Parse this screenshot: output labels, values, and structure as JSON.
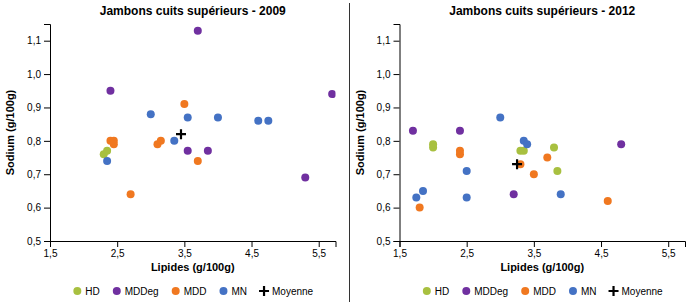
{
  "chart_data": [
    {
      "type": "scatter",
      "title": "Jambons cuits supérieurs - 2009",
      "xlabel": "Lipides (g/100g)",
      "ylabel": "Sodium (g/100g)",
      "xlim": [
        1.5,
        5.75
      ],
      "ylim": [
        0.5,
        1.15
      ],
      "xticks": [
        {
          "value": 1.5,
          "label": "1,5"
        },
        {
          "value": 2.5,
          "label": "2,5"
        },
        {
          "value": 3.5,
          "label": "3,5"
        },
        {
          "value": 4.5,
          "label": "4,5"
        },
        {
          "value": 5.5,
          "label": "5,5"
        }
      ],
      "yticks": [
        {
          "value": 0.5,
          "label": "0,5"
        },
        {
          "value": 0.6,
          "label": "0,6"
        },
        {
          "value": 0.7,
          "label": "0,7"
        },
        {
          "value": 0.8,
          "label": "0,8"
        },
        {
          "value": 0.9,
          "label": "0,9"
        },
        {
          "value": 1.0,
          "label": "1,0"
        },
        {
          "value": 1.1,
          "label": "1,1"
        }
      ],
      "grid": false,
      "legend": "bottom",
      "series": [
        {
          "name": "HD",
          "color": "#a8c040",
          "marker": "circle",
          "x": [
            2.3,
            2.35
          ],
          "values": [
            0.76,
            0.77
          ]
        },
        {
          "name": "MDDeg",
          "color": "#7030a0",
          "marker": "circle",
          "x": [
            2.4,
            3.7,
            3.55,
            3.85,
            5.3,
            5.7
          ],
          "values": [
            0.95,
            1.13,
            0.77,
            0.77,
            0.69,
            0.94
          ]
        },
        {
          "name": "MDD",
          "color": "#f07820",
          "marker": "circle",
          "x": [
            2.4,
            2.45,
            2.45,
            2.7,
            3.1,
            3.15,
            3.5,
            3.7
          ],
          "values": [
            0.8,
            0.8,
            0.79,
            0.64,
            0.79,
            0.8,
            0.91,
            0.74
          ]
        },
        {
          "name": "MN",
          "color": "#4472c4",
          "marker": "circle",
          "x": [
            2.35,
            3.0,
            3.35,
            3.55,
            4.0,
            4.6,
            4.75
          ],
          "values": [
            0.74,
            0.88,
            0.8,
            0.87,
            0.87,
            0.86,
            0.86
          ]
        },
        {
          "name": "Moyenne",
          "color": "#000000",
          "marker": "plus",
          "x": [
            3.45
          ],
          "values": [
            0.82
          ]
        }
      ]
    },
    {
      "type": "scatter",
      "title": "Jambons cuits supérieurs - 2012",
      "xlabel": "Lipides (g/100g)",
      "ylabel": "Sodium (g/100g)",
      "xlim": [
        1.5,
        5.75
      ],
      "ylim": [
        0.5,
        1.15
      ],
      "xticks": [
        {
          "value": 1.5,
          "label": "1,5"
        },
        {
          "value": 2.5,
          "label": "2,5"
        },
        {
          "value": 3.5,
          "label": "3,5"
        },
        {
          "value": 4.5,
          "label": "4,5"
        },
        {
          "value": 5.5,
          "label": "5,5"
        }
      ],
      "yticks": [
        {
          "value": 0.5,
          "label": "0,5"
        },
        {
          "value": 0.6,
          "label": "0,6"
        },
        {
          "value": 0.7,
          "label": "0,7"
        },
        {
          "value": 0.8,
          "label": "0,8"
        },
        {
          "value": 0.9,
          "label": "0,9"
        },
        {
          "value": 1.0,
          "label": "1,0"
        },
        {
          "value": 1.1,
          "label": "1,1"
        }
      ],
      "grid": false,
      "legend": "bottom",
      "series": [
        {
          "name": "HD",
          "color": "#a8c040",
          "marker": "circle",
          "x": [
            2.0,
            2.0,
            3.3,
            3.35,
            3.8,
            3.85
          ],
          "values": [
            0.79,
            0.78,
            0.77,
            0.77,
            0.78,
            0.71
          ]
        },
        {
          "name": "MDDeg",
          "color": "#7030a0",
          "marker": "circle",
          "x": [
            1.7,
            2.4,
            3.2,
            4.8
          ],
          "values": [
            0.83,
            0.83,
            0.64,
            0.79
          ]
        },
        {
          "name": "MDD",
          "color": "#f07820",
          "marker": "circle",
          "x": [
            1.8,
            2.4,
            2.4,
            3.3,
            3.5,
            3.7,
            4.6
          ],
          "values": [
            0.6,
            0.76,
            0.77,
            0.73,
            0.7,
            0.75,
            0.62
          ]
        },
        {
          "name": "MN",
          "color": "#4472c4",
          "marker": "circle",
          "x": [
            1.75,
            1.85,
            2.5,
            2.5,
            3.0,
            3.35,
            3.4,
            3.9
          ],
          "values": [
            0.63,
            0.65,
            0.71,
            0.63,
            0.87,
            0.8,
            0.79,
            0.64
          ]
        },
        {
          "name": "Moyenne",
          "color": "#000000",
          "marker": "plus",
          "x": [
            3.25
          ],
          "values": [
            0.73
          ]
        }
      ]
    }
  ]
}
